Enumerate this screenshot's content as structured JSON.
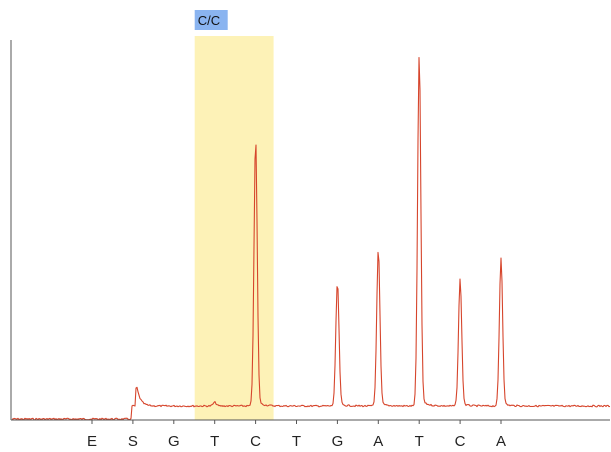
{
  "chart_data": {
    "type": "line",
    "title": "",
    "xlabel": "",
    "ylabel": "",
    "categories": [
      "E",
      "S",
      "G",
      "T",
      "C",
      "T",
      "G",
      "A",
      "T",
      "C",
      "A"
    ],
    "peaks": [
      {
        "dispensation": "E",
        "height": 0.0
      },
      {
        "dispensation": "S",
        "height": 0.07
      },
      {
        "dispensation": "G",
        "height": 0.0
      },
      {
        "dispensation": "T",
        "height": 0.01
      },
      {
        "dispensation": "C",
        "height": 0.73
      },
      {
        "dispensation": "T",
        "height": 0.0
      },
      {
        "dispensation": "G",
        "height": 0.34
      },
      {
        "dispensation": "A",
        "height": 0.43
      },
      {
        "dispensation": "T",
        "height": 0.97
      },
      {
        "dispensation": "C",
        "height": 0.35
      },
      {
        "dispensation": "A",
        "height": 0.41
      }
    ],
    "ylim": [
      0,
      1
    ],
    "grid": false,
    "highlight": {
      "label": "C/C",
      "label_color": "#8ab4f0",
      "fill_color": "#fdf2b7",
      "from_category_index": 3,
      "to_category_index": 4
    },
    "colors": {
      "trace": "#d6452c",
      "axis": "#555555"
    }
  }
}
